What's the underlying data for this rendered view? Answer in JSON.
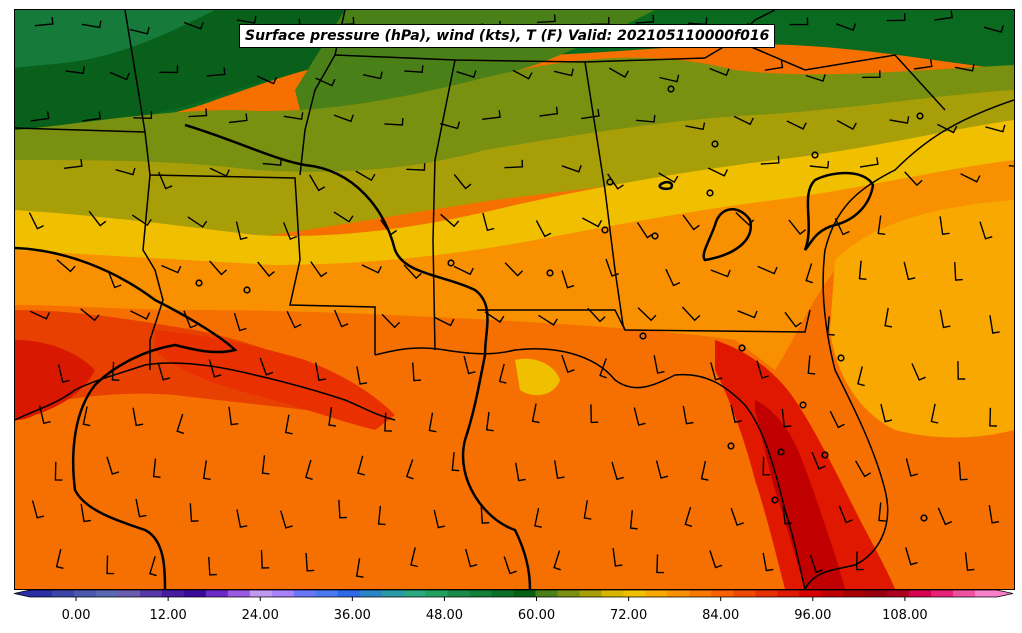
{
  "title": "Surface pressure (hPa), wind (kts), T (F) Valid: 202105110000f016",
  "colorbar": {
    "min": -6,
    "max": 120,
    "tick_labels": [
      "0.00",
      "12.00",
      "24.00",
      "36.00",
      "48.00",
      "60.00",
      "72.00",
      "84.00",
      "96.00",
      "108.00"
    ],
    "tick_values": [
      0,
      12,
      24,
      36,
      48,
      60,
      72,
      84,
      96,
      108
    ],
    "colors": [
      "#2b2fa6",
      "#3b44a8",
      "#4b5ab0",
      "#5b68b4",
      "#6a5db0",
      "#5838a8",
      "#4a1aa0",
      "#3a0a98",
      "#6a2ac8",
      "#9a58e0",
      "#c09af0",
      "#a880f8",
      "#6a78f8",
      "#4a78f0",
      "#2e6ae8",
      "#2a86c8",
      "#2a9aa8",
      "#2aa880",
      "#22a060",
      "#1a8a48",
      "#128036",
      "#0a7028",
      "#066014",
      "#4a8018",
      "#7a9010",
      "#a89e08",
      "#d8b600",
      "#f0c000",
      "#f8a800",
      "#f89000",
      "#f87800",
      "#f86000",
      "#f04800",
      "#e83000",
      "#e01800",
      "#d80000",
      "#c00000",
      "#a80000",
      "#980010",
      "#b00020",
      "#d80050",
      "#e8207a",
      "#f050a0",
      "#f880c8"
    ]
  }
}
